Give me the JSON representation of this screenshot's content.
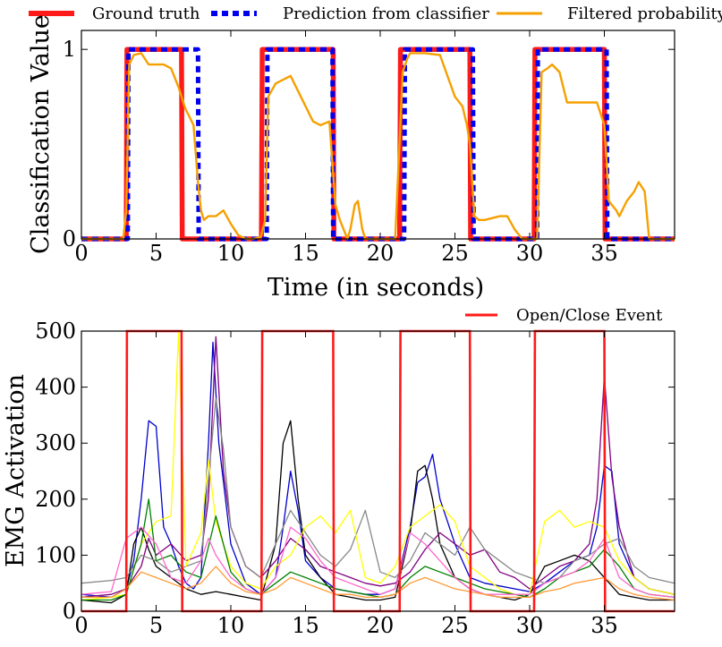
{
  "chart_data": [
    {
      "type": "line",
      "xlabel": "Time (in seconds)",
      "ylabel": "Classification Value",
      "xlim": [
        0,
        39.7
      ],
      "ylim": [
        0,
        1.1
      ],
      "xticks": [
        0,
        5,
        10,
        15,
        20,
        25,
        30,
        35
      ],
      "xtick_labels": [
        "0",
        "5",
        "10",
        "15",
        "20",
        "25",
        "30",
        "35"
      ],
      "yticks": [
        0,
        1
      ],
      "ytick_labels": [
        "0",
        "1"
      ],
      "grid": false,
      "legend_placement": "top (outside, single row)",
      "series": [
        {
          "name": "Ground truth",
          "color": "#ff1a1a",
          "style": "solid-thick",
          "x": [
            0,
            3.0,
            3.05,
            6.7,
            6.75,
            12.05,
            12.1,
            16.85,
            16.9,
            21.3,
            21.35,
            26.0,
            26.05,
            30.3,
            30.35,
            35.0,
            35.05,
            39.7
          ],
          "y": [
            0,
            0,
            1,
            1,
            0,
            0,
            1,
            1,
            0,
            0,
            1,
            1,
            0,
            0,
            1,
            1,
            0,
            0
          ]
        },
        {
          "name": "Prediction from classifier",
          "color": "#0000ee",
          "style": "dashed-thick",
          "x": [
            0,
            3.1,
            3.15,
            7.8,
            7.85,
            12.4,
            12.45,
            16.8,
            16.85,
            21.6,
            21.65,
            26.2,
            26.25,
            30.5,
            30.55,
            35.15,
            35.2,
            39.7
          ],
          "y": [
            0,
            0,
            1,
            1,
            0,
            0,
            1,
            1,
            0,
            0,
            1,
            1,
            0,
            0,
            1,
            1,
            0,
            0
          ]
        },
        {
          "name": "Filtered probability",
          "color": "#f5a000",
          "style": "solid",
          "x": [
            0,
            2.8,
            3.0,
            3.2,
            3.5,
            4.0,
            4.5,
            5.0,
            5.5,
            6.0,
            6.5,
            6.9,
            7.0,
            7.2,
            7.5,
            7.8,
            8.0,
            8.2,
            8.5,
            9.0,
            9.5,
            10.0,
            10.5,
            11.0,
            11.5,
            12.0,
            12.3,
            12.5,
            13.0,
            14.0,
            15.0,
            15.5,
            16.0,
            16.6,
            17.0,
            17.3,
            17.8,
            18.0,
            18.3,
            18.5,
            18.8,
            19.0,
            19.3,
            19.5,
            20.0,
            21.0,
            21.5,
            21.8,
            22.0,
            23.0,
            24.0,
            25.0,
            25.5,
            25.8,
            26.0,
            26.3,
            26.6,
            27.0,
            28.0,
            28.5,
            29.0,
            29.5,
            30.0,
            30.5,
            30.8,
            31.2,
            31.5,
            32.0,
            32.5,
            33.0,
            34.0,
            34.5,
            35.0,
            35.3,
            35.8,
            36.0,
            36.5,
            37.0,
            37.3,
            37.7,
            38.0,
            39.7
          ],
          "y": [
            0,
            0,
            0.15,
            0.92,
            0.97,
            0.98,
            0.92,
            0.92,
            0.92,
            0.9,
            0.8,
            0.7,
            0.68,
            0.65,
            0.6,
            0.3,
            0.15,
            0.1,
            0.12,
            0.12,
            0.15,
            0.08,
            0.02,
            0.0,
            0.0,
            0.01,
            0.1,
            0.75,
            0.82,
            0.86,
            0.7,
            0.62,
            0.6,
            0.62,
            0.18,
            0.1,
            0.0,
            0.05,
            0.18,
            0.2,
            0.05,
            0.0,
            0.0,
            0.0,
            0.0,
            0.0,
            0.88,
            0.95,
            0.98,
            0.98,
            0.97,
            0.75,
            0.7,
            0.6,
            0.5,
            0.12,
            0.1,
            0.1,
            0.12,
            0.12,
            0.05,
            0.0,
            0.0,
            0.0,
            0.88,
            0.9,
            0.92,
            0.88,
            0.72,
            0.72,
            0.72,
            0.72,
            0.6,
            0.2,
            0.15,
            0.12,
            0.2,
            0.25,
            0.3,
            0.25,
            0.0,
            0.0
          ]
        }
      ]
    },
    {
      "type": "line",
      "xlabel": "",
      "ylabel": "EMG Activation",
      "xlim": [
        0,
        39.7
      ],
      "ylim": [
        0,
        500
      ],
      "xticks": [
        0,
        5,
        10,
        15,
        20,
        25,
        30,
        35
      ],
      "xtick_labels": [
        "0",
        "5",
        "10",
        "15",
        "20",
        "25",
        "30",
        "35"
      ],
      "yticks": [
        0,
        100,
        200,
        300,
        400,
        500
      ],
      "ytick_labels": [
        "0",
        "100",
        "200",
        "300",
        "400",
        "500"
      ],
      "grid": false,
      "legend_placement": "top (outside)",
      "event_series": {
        "name": "Open/Close Event",
        "color": "#ff1a1a",
        "x": [
          0,
          3.0,
          3.05,
          6.7,
          6.75,
          12.05,
          12.1,
          16.85,
          16.9,
          21.3,
          21.35,
          26.0,
          26.05,
          30.3,
          30.35,
          35.0,
          35.05,
          39.7
        ],
        "y": [
          0,
          0,
          500,
          500,
          0,
          0,
          500,
          500,
          0,
          0,
          500,
          500,
          0,
          0,
          500,
          500,
          0,
          0
        ]
      },
      "series": [
        {
          "color": "#0000cc",
          "x": [
            0,
            2,
            3,
            3.5,
            4,
            4.5,
            5,
            5.5,
            6,
            6.5,
            7,
            7.5,
            8,
            8.5,
            8.8,
            9.2,
            10,
            11,
            12,
            13,
            13.5,
            14,
            14.5,
            15,
            16,
            17,
            18,
            19,
            20,
            21,
            22,
            22.5,
            23,
            23.5,
            24,
            24.5,
            25,
            26,
            27,
            28,
            29,
            30,
            31,
            32,
            33,
            34,
            34.5,
            35,
            35.5,
            36,
            37,
            38,
            39.7
          ],
          "y": [
            30,
            25,
            40,
            90,
            200,
            340,
            330,
            150,
            120,
            80,
            50,
            40,
            60,
            300,
            480,
            300,
            120,
            50,
            30,
            60,
            150,
            250,
            180,
            90,
            60,
            40,
            35,
            30,
            30,
            40,
            150,
            230,
            240,
            280,
            200,
            160,
            120,
            60,
            50,
            45,
            40,
            35,
            50,
            70,
            90,
            100,
            150,
            260,
            250,
            120,
            60,
            40,
            30
          ]
        },
        {
          "color": "#000000",
          "x": [
            0,
            2,
            3,
            3.5,
            4,
            4.5,
            5,
            6,
            7,
            8,
            9,
            10,
            11,
            12,
            13,
            13.5,
            14,
            14.5,
            15,
            16,
            17,
            18,
            19,
            20,
            21,
            22,
            22.5,
            23,
            23.5,
            24,
            25,
            26,
            27,
            28,
            29,
            30,
            31,
            32,
            33,
            34,
            35,
            36,
            37,
            38,
            39.7
          ],
          "y": [
            20,
            15,
            30,
            120,
            150,
            110,
            80,
            60,
            40,
            30,
            35,
            30,
            25,
            20,
            120,
            300,
            340,
            200,
            100,
            60,
            30,
            25,
            20,
            20,
            25,
            140,
            250,
            260,
            200,
            120,
            60,
            40,
            30,
            25,
            20,
            30,
            80,
            90,
            100,
            90,
            60,
            30,
            25,
            20,
            20
          ]
        },
        {
          "color": "#800080",
          "x": [
            0,
            2,
            3,
            4,
            4.5,
            5,
            6,
            7,
            8,
            8.5,
            9,
            9.5,
            10,
            11,
            12,
            13,
            14,
            15,
            16,
            17,
            18,
            19,
            20,
            21,
            22,
            23,
            24,
            25,
            26,
            27,
            28,
            29,
            30,
            31,
            32,
            33,
            34,
            34.5,
            35,
            35.5,
            36,
            37,
            38,
            39.7
          ],
          "y": [
            25,
            30,
            40,
            80,
            130,
            100,
            120,
            90,
            100,
            200,
            490,
            250,
            150,
            80,
            60,
            90,
            130,
            110,
            80,
            70,
            60,
            50,
            45,
            50,
            70,
            110,
            140,
            120,
            100,
            110,
            70,
            60,
            40,
            60,
            80,
            90,
            120,
            200,
            420,
            240,
            150,
            60,
            40,
            30
          ]
        },
        {
          "color": "#888888",
          "x": [
            0,
            2,
            3,
            4,
            5,
            6,
            7,
            8,
            9,
            9.5,
            10,
            11,
            12,
            13,
            14,
            15,
            16,
            17,
            18,
            19,
            20,
            21,
            22,
            23,
            24,
            25,
            26,
            27,
            28,
            29,
            30,
            31,
            32,
            33,
            34,
            35,
            36,
            37,
            38,
            39.7
          ],
          "y": [
            50,
            55,
            60,
            100,
            90,
            70,
            80,
            90,
            380,
            290,
            150,
            80,
            60,
            120,
            180,
            140,
            100,
            80,
            110,
            180,
            70,
            60,
            90,
            140,
            120,
            100,
            150,
            110,
            90,
            70,
            60,
            50,
            60,
            90,
            100,
            120,
            130,
            80,
            60,
            50
          ]
        },
        {
          "color": "#ffff00",
          "x": [
            0,
            2,
            3,
            4,
            5,
            6,
            6.5,
            7,
            8,
            8.5,
            9,
            10,
            11,
            12,
            13,
            14,
            15,
            16,
            17,
            18,
            19,
            20,
            21,
            22,
            23,
            24,
            25,
            26,
            27,
            28,
            29,
            30,
            31,
            32,
            33,
            34,
            35,
            36,
            37,
            38,
            39.7
          ],
          "y": [
            20,
            25,
            30,
            120,
            160,
            170,
            500,
            80,
            140,
            270,
            160,
            80,
            50,
            40,
            80,
            100,
            150,
            170,
            140,
            180,
            60,
            50,
            80,
            150,
            170,
            190,
            160,
            80,
            60,
            40,
            30,
            30,
            160,
            180,
            150,
            160,
            150,
            90,
            60,
            40,
            30
          ]
        },
        {
          "color": "#008000",
          "x": [
            0,
            2,
            3,
            4,
            4.5,
            5,
            6,
            7,
            8,
            9,
            10,
            11,
            12,
            13,
            14,
            15,
            16,
            17,
            18,
            19,
            20,
            21,
            22,
            23,
            24,
            25,
            26,
            27,
            28,
            29,
            30,
            31,
            32,
            33,
            34,
            35,
            36,
            37,
            38,
            39.7
          ],
          "y": [
            20,
            20,
            30,
            120,
            200,
            90,
            100,
            70,
            60,
            170,
            70,
            40,
            30,
            50,
            70,
            60,
            50,
            40,
            35,
            30,
            25,
            30,
            60,
            80,
            70,
            60,
            50,
            40,
            35,
            30,
            25,
            40,
            60,
            70,
            80,
            110,
            80,
            40,
            30,
            25
          ]
        },
        {
          "color": "#ff66cc",
          "x": [
            0,
            2,
            3,
            4,
            5,
            6,
            7,
            8,
            8.5,
            9,
            10,
            11,
            12,
            13,
            14,
            15,
            16,
            17,
            18,
            19,
            20,
            21,
            22,
            23,
            24,
            25,
            26,
            27,
            28,
            29,
            30,
            31,
            32,
            33,
            34,
            35,
            36,
            37,
            38,
            39.7
          ],
          "y": [
            30,
            35,
            130,
            150,
            120,
            60,
            50,
            90,
            130,
            100,
            60,
            40,
            30,
            60,
            150,
            130,
            90,
            60,
            50,
            40,
            30,
            40,
            140,
            120,
            90,
            60,
            40,
            30,
            30,
            30,
            30,
            50,
            60,
            70,
            90,
            130,
            60,
            40,
            30,
            25
          ]
        },
        {
          "color": "#ff9933",
          "x": [
            0,
            2,
            3,
            4,
            5,
            6,
            7,
            8,
            9,
            10,
            11,
            12,
            13,
            14,
            15,
            16,
            17,
            18,
            19,
            20,
            21,
            22,
            23,
            24,
            25,
            26,
            27,
            28,
            29,
            30,
            31,
            32,
            33,
            34,
            35,
            36,
            37,
            38,
            39.7
          ],
          "y": [
            25,
            25,
            40,
            70,
            60,
            50,
            40,
            50,
            80,
            50,
            35,
            30,
            40,
            60,
            50,
            40,
            30,
            30,
            25,
            25,
            30,
            50,
            60,
            50,
            40,
            35,
            30,
            25,
            25,
            25,
            35,
            40,
            50,
            55,
            60,
            40,
            30,
            25,
            20
          ]
        }
      ]
    }
  ]
}
